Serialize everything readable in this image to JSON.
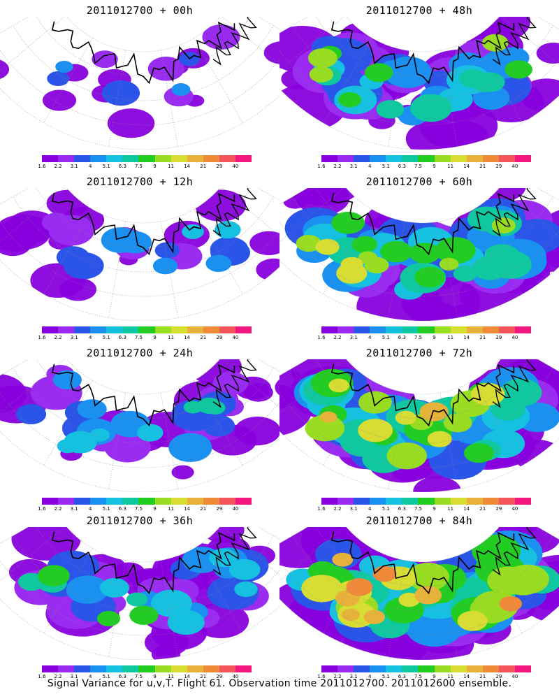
{
  "panels": [
    {
      "title": "2011012700 + 00h"
    },
    {
      "title": "2011012700 + 48h"
    },
    {
      "title": "2011012700 + 12h"
    },
    {
      "title": "2011012700 + 60h"
    },
    {
      "title": "2011012700 + 24h"
    },
    {
      "title": "2011012700 + 72h"
    },
    {
      "title": "2011012700 + 36h"
    },
    {
      "title": "2011012700 + 84h"
    }
  ],
  "colorbar": {
    "labels": [
      "1.6",
      "2.2",
      "3.1",
      "4",
      "5.1",
      "6.3",
      "7.5",
      "9",
      "11",
      "14",
      "21",
      "29",
      "40"
    ],
    "colors": [
      "#8800dd",
      "#9a2bf0",
      "#2a55e8",
      "#1a90f0",
      "#16c0e0",
      "#10c8a0",
      "#22cc22",
      "#99dd22",
      "#d8dd33",
      "#e6b23a",
      "#ef8a3a",
      "#f2555a",
      "#f21880"
    ]
  },
  "footer": "Signal Variance for u,v,T. Flight 61. Observation time 2011012700. 2011012600 ensemble."
}
